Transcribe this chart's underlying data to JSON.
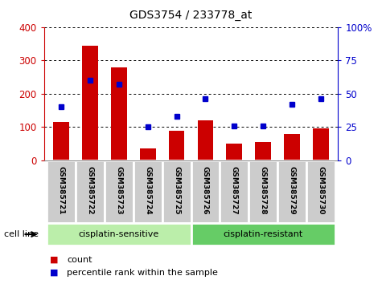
{
  "title": "GDS3754 / 233778_at",
  "samples": [
    "GSM385721",
    "GSM385722",
    "GSM385723",
    "GSM385724",
    "GSM385725",
    "GSM385726",
    "GSM385727",
    "GSM385728",
    "GSM385729",
    "GSM385730"
  ],
  "counts": [
    115,
    345,
    280,
    35,
    90,
    120,
    50,
    55,
    80,
    95
  ],
  "percentile_ranks": [
    40,
    60,
    57,
    25,
    33,
    46,
    26,
    26,
    42,
    46
  ],
  "count_color": "#cc0000",
  "percentile_color": "#0000cc",
  "ylim_left": [
    0,
    400
  ],
  "ylim_right": [
    0,
    100
  ],
  "yticks_left": [
    0,
    100,
    200,
    300,
    400
  ],
  "yticks_right": [
    0,
    25,
    50,
    75,
    100
  ],
  "groups": [
    {
      "label": "cisplatin-sensitive",
      "start": 0,
      "end": 5,
      "color": "#bbeeaa"
    },
    {
      "label": "cisplatin-resistant",
      "start": 5,
      "end": 10,
      "color": "#66cc66"
    }
  ],
  "cell_line_label": "cell line",
  "legend_count": "count",
  "legend_percentile": "percentile rank within the sample",
  "bar_width": 0.55,
  "tick_label_color_left": "#cc0000",
  "tick_label_color_right": "#0000cc",
  "box_color": "#cccccc",
  "box_edge_color": "#ffffff"
}
